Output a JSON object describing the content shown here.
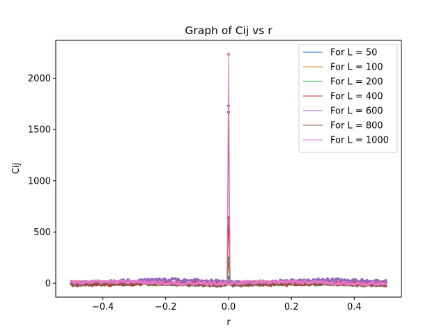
{
  "chart_data": {
    "type": "line",
    "title": "Graph of Cij vs r",
    "xlabel": "r",
    "ylabel": "Cij",
    "xlim": [
      -0.55,
      0.55
    ],
    "ylim": [
      -135,
      2370
    ],
    "xticks": [
      -0.4,
      -0.2,
      0.0,
      0.2,
      0.4
    ],
    "xtick_labels": [
      "−0.4",
      "−0.2",
      "0.0",
      "0.2",
      "0.4"
    ],
    "yticks": [
      0,
      500,
      1000,
      1500,
      2000
    ],
    "ytick_labels": [
      "0",
      "500",
      "1000",
      "1500",
      "2000"
    ],
    "grid": false,
    "legend": "top-right",
    "series": [
      {
        "name": "For L = 50",
        "color": "#1f77b4",
        "peak": 60,
        "baseline": 0,
        "noise": 8
      },
      {
        "name": "For L = 100",
        "color": "#ff7f0e",
        "peak": 190,
        "baseline": 2,
        "noise": 10
      },
      {
        "name": "For L = 200",
        "color": "#2ca02c",
        "peak": 245,
        "baseline": 0,
        "noise": 10
      },
      {
        "name": "For L = 400",
        "color": "#d62728",
        "peak": 640,
        "baseline": 0,
        "noise": 12
      },
      {
        "name": "For L = 600",
        "color": "#9467bd",
        "peak": 1730,
        "baseline": 20,
        "noise": 14
      },
      {
        "name": "For L = 800",
        "color": "#8c564b",
        "peak": 1670,
        "baseline": -10,
        "noise": 10
      },
      {
        "name": "For L = 1000",
        "color": "#e377c2",
        "peak": 2235,
        "baseline": 5,
        "noise": 12
      }
    ]
  }
}
